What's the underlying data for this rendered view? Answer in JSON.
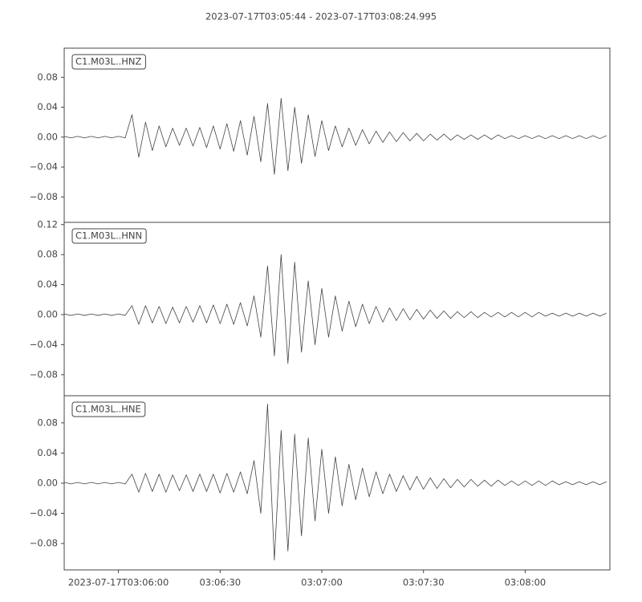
{
  "title": "2023-07-17T03:05:44  -  2023-07-17T03:08:24.995",
  "chart_data": [
    {
      "type": "line",
      "label": "C1.M03L..HNZ",
      "x": [
        0,
        2,
        4,
        6,
        8,
        10,
        12,
        14,
        16,
        18,
        20,
        22,
        24,
        26,
        28,
        30,
        32,
        34,
        36,
        38,
        40,
        42,
        44,
        46,
        48,
        50,
        52,
        54,
        56,
        58,
        60,
        62,
        64,
        66,
        68,
        70,
        72,
        74,
        76,
        78,
        80,
        82,
        84,
        86,
        88,
        90,
        92,
        94,
        96,
        98,
        100,
        102,
        104,
        106,
        108,
        110,
        112,
        114,
        116,
        118,
        120,
        122,
        124,
        126,
        128,
        130,
        132,
        134,
        136,
        138,
        140,
        142,
        144,
        146,
        148,
        150,
        152,
        154,
        156,
        158,
        160
      ],
      "xlim": [
        0,
        160.995
      ],
      "ylim": [
        -0.114,
        0.119
      ],
      "yticks": [
        {
          "value": -0.08,
          "label": "−0.08"
        },
        {
          "value": -0.04,
          "label": "−0.04"
        },
        {
          "value": 0,
          "label": "0.00"
        },
        0.04,
        0.08
      ],
      "series": [
        {
          "color": "#444444",
          "values": [
            0.001,
            -0.001,
            0.001,
            -0.001,
            0.001,
            -0.001,
            0.001,
            -0.001,
            0.001,
            -0.001,
            0.03,
            -0.027,
            0.02,
            -0.018,
            0.015,
            -0.013,
            0.012,
            -0.011,
            0.012,
            -0.012,
            0.013,
            -0.014,
            0.015,
            -0.016,
            0.018,
            -0.019,
            0.022,
            -0.024,
            0.028,
            -0.033,
            0.045,
            -0.05,
            0.052,
            -0.045,
            0.04,
            -0.035,
            0.03,
            -0.026,
            0.022,
            -0.018,
            0.015,
            -0.013,
            0.012,
            -0.011,
            0.01,
            -0.009,
            0.008,
            -0.007,
            0.007,
            -0.006,
            0.006,
            -0.005,
            0.005,
            -0.005,
            0.004,
            -0.004,
            0.004,
            -0.004,
            0.003,
            -0.003,
            0.003,
            -0.003,
            0.003,
            -0.003,
            0.003,
            -0.002,
            0.002,
            -0.002,
            0.002,
            -0.002,
            0.002,
            -0.002,
            0.002,
            -0.002,
            0.002,
            -0.002,
            0.002,
            -0.002,
            0.002,
            -0.002,
            0.002
          ]
        }
      ]
    },
    {
      "type": "line",
      "label": "C1.M03L..HNN",
      "x": [
        0,
        2,
        4,
        6,
        8,
        10,
        12,
        14,
        16,
        18,
        20,
        22,
        24,
        26,
        28,
        30,
        32,
        34,
        36,
        38,
        40,
        42,
        44,
        46,
        48,
        50,
        52,
        54,
        56,
        58,
        60,
        62,
        64,
        66,
        68,
        70,
        72,
        74,
        76,
        78,
        80,
        82,
        84,
        86,
        88,
        90,
        92,
        94,
        96,
        98,
        100,
        102,
        104,
        106,
        108,
        110,
        112,
        114,
        116,
        118,
        120,
        122,
        124,
        126,
        128,
        130,
        132,
        134,
        136,
        138,
        140,
        142,
        144,
        146,
        148,
        150,
        152,
        154,
        156,
        158,
        160
      ],
      "xlim": [
        0,
        160.995
      ],
      "ylim": [
        -0.108,
        0.123
      ],
      "yticks": [
        {
          "value": -0.08,
          "label": "−0.08"
        },
        {
          "value": -0.04,
          "label": "−0.04"
        },
        {
          "value": 0,
          "label": "0.00"
        },
        0.04,
        0.08,
        0.12
      ],
      "series": [
        {
          "color": "#444444",
          "values": [
            0.001,
            -0.001,
            0.001,
            -0.001,
            0.001,
            -0.001,
            0.001,
            -0.001,
            0.001,
            -0.001,
            0.012,
            -0.013,
            0.012,
            -0.011,
            0.011,
            -0.012,
            0.01,
            -0.011,
            0.011,
            -0.01,
            0.012,
            -0.011,
            0.013,
            -0.012,
            0.014,
            -0.013,
            0.016,
            -0.015,
            0.025,
            -0.03,
            0.065,
            -0.055,
            0.08,
            -0.065,
            0.07,
            -0.05,
            0.045,
            -0.04,
            0.035,
            -0.03,
            0.025,
            -0.022,
            0.018,
            -0.016,
            0.014,
            -0.012,
            0.011,
            -0.01,
            0.009,
            -0.008,
            0.008,
            -0.007,
            0.007,
            -0.006,
            0.006,
            -0.005,
            0.005,
            -0.005,
            0.004,
            -0.004,
            0.004,
            -0.004,
            0.003,
            -0.003,
            0.003,
            -0.003,
            0.003,
            -0.003,
            0.003,
            -0.003,
            0.003,
            -0.002,
            0.002,
            -0.002,
            0.002,
            -0.002,
            0.002,
            -0.002,
            0.002,
            -0.002,
            0.002
          ]
        }
      ]
    },
    {
      "type": "line",
      "label": "C1.M03L..HNE",
      "x": [
        0,
        2,
        4,
        6,
        8,
        10,
        12,
        14,
        16,
        18,
        20,
        22,
        24,
        26,
        28,
        30,
        32,
        34,
        36,
        38,
        40,
        42,
        44,
        46,
        48,
        50,
        52,
        54,
        56,
        58,
        60,
        62,
        64,
        66,
        68,
        70,
        72,
        74,
        76,
        78,
        80,
        82,
        84,
        86,
        88,
        90,
        92,
        94,
        96,
        98,
        100,
        102,
        104,
        106,
        108,
        110,
        112,
        114,
        116,
        118,
        120,
        122,
        124,
        126,
        128,
        130,
        132,
        134,
        136,
        138,
        140,
        142,
        144,
        146,
        148,
        150,
        152,
        154,
        156,
        158,
        160
      ],
      "xlim": [
        0,
        160.995
      ],
      "ylim": [
        -0.115,
        0.116
      ],
      "yticks": [
        {
          "value": -0.08,
          "label": "−0.08"
        },
        {
          "value": -0.04,
          "label": "−0.04"
        },
        {
          "value": 0,
          "label": "0.00"
        },
        0.04,
        0.08
      ],
      "xticks": [
        {
          "value": 16,
          "label": "2023-07-17T03:06:00"
        },
        {
          "value": 46,
          "label": "03:06:30"
        },
        {
          "value": 76,
          "label": "03:07:00"
        },
        {
          "value": 106,
          "label": "03:07:30"
        },
        {
          "value": 136,
          "label": "03:08:00"
        }
      ],
      "series": [
        {
          "color": "#444444",
          "values": [
            0.001,
            -0.001,
            0.001,
            -0.001,
            0.001,
            -0.001,
            0.001,
            -0.001,
            0.001,
            -0.001,
            0.012,
            -0.012,
            0.013,
            -0.011,
            0.012,
            -0.012,
            0.011,
            -0.01,
            0.011,
            -0.011,
            0.012,
            -0.011,
            0.012,
            -0.013,
            0.013,
            -0.012,
            0.015,
            -0.014,
            0.03,
            -0.04,
            0.105,
            -0.102,
            0.07,
            -0.09,
            0.065,
            -0.07,
            0.06,
            -0.05,
            0.045,
            -0.04,
            0.035,
            -0.03,
            0.025,
            -0.022,
            0.02,
            -0.018,
            0.015,
            -0.014,
            0.012,
            -0.011,
            0.01,
            -0.009,
            0.009,
            -0.008,
            0.007,
            -0.007,
            0.006,
            -0.006,
            0.005,
            -0.005,
            0.005,
            -0.004,
            0.004,
            -0.004,
            0.004,
            -0.003,
            0.003,
            -0.003,
            0.003,
            -0.003,
            0.003,
            -0.003,
            0.003,
            -0.002,
            0.002,
            -0.002,
            0.002,
            -0.002,
            0.002,
            -0.002,
            0.002
          ]
        }
      ]
    }
  ]
}
